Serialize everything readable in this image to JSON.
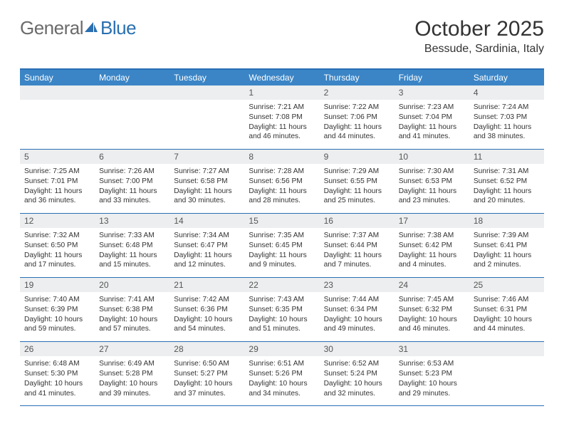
{
  "logo": {
    "general": "General",
    "blue": "Blue"
  },
  "title": "October 2025",
  "location": "Bessude, Sardinia, Italy",
  "colors": {
    "header_bg": "#3b85c6",
    "border": "#2a6fb5",
    "daynum_bg": "#eceeef",
    "text": "#333333",
    "logo_gray": "#6b6b6b",
    "logo_blue": "#2a6fb0"
  },
  "day_names": [
    "Sunday",
    "Monday",
    "Tuesday",
    "Wednesday",
    "Thursday",
    "Friday",
    "Saturday"
  ],
  "weeks": [
    {
      "nums": [
        "",
        "",
        "",
        "1",
        "2",
        "3",
        "4"
      ],
      "cells": [
        "",
        "",
        "",
        "Sunrise: 7:21 AM\nSunset: 7:08 PM\nDaylight: 11 hours and 46 minutes.",
        "Sunrise: 7:22 AM\nSunset: 7:06 PM\nDaylight: 11 hours and 44 minutes.",
        "Sunrise: 7:23 AM\nSunset: 7:04 PM\nDaylight: 11 hours and 41 minutes.",
        "Sunrise: 7:24 AM\nSunset: 7:03 PM\nDaylight: 11 hours and 38 minutes."
      ]
    },
    {
      "nums": [
        "5",
        "6",
        "7",
        "8",
        "9",
        "10",
        "11"
      ],
      "cells": [
        "Sunrise: 7:25 AM\nSunset: 7:01 PM\nDaylight: 11 hours and 36 minutes.",
        "Sunrise: 7:26 AM\nSunset: 7:00 PM\nDaylight: 11 hours and 33 minutes.",
        "Sunrise: 7:27 AM\nSunset: 6:58 PM\nDaylight: 11 hours and 30 minutes.",
        "Sunrise: 7:28 AM\nSunset: 6:56 PM\nDaylight: 11 hours and 28 minutes.",
        "Sunrise: 7:29 AM\nSunset: 6:55 PM\nDaylight: 11 hours and 25 minutes.",
        "Sunrise: 7:30 AM\nSunset: 6:53 PM\nDaylight: 11 hours and 23 minutes.",
        "Sunrise: 7:31 AM\nSunset: 6:52 PM\nDaylight: 11 hours and 20 minutes."
      ]
    },
    {
      "nums": [
        "12",
        "13",
        "14",
        "15",
        "16",
        "17",
        "18"
      ],
      "cells": [
        "Sunrise: 7:32 AM\nSunset: 6:50 PM\nDaylight: 11 hours and 17 minutes.",
        "Sunrise: 7:33 AM\nSunset: 6:48 PM\nDaylight: 11 hours and 15 minutes.",
        "Sunrise: 7:34 AM\nSunset: 6:47 PM\nDaylight: 11 hours and 12 minutes.",
        "Sunrise: 7:35 AM\nSunset: 6:45 PM\nDaylight: 11 hours and 9 minutes.",
        "Sunrise: 7:37 AM\nSunset: 6:44 PM\nDaylight: 11 hours and 7 minutes.",
        "Sunrise: 7:38 AM\nSunset: 6:42 PM\nDaylight: 11 hours and 4 minutes.",
        "Sunrise: 7:39 AM\nSunset: 6:41 PM\nDaylight: 11 hours and 2 minutes."
      ]
    },
    {
      "nums": [
        "19",
        "20",
        "21",
        "22",
        "23",
        "24",
        "25"
      ],
      "cells": [
        "Sunrise: 7:40 AM\nSunset: 6:39 PM\nDaylight: 10 hours and 59 minutes.",
        "Sunrise: 7:41 AM\nSunset: 6:38 PM\nDaylight: 10 hours and 57 minutes.",
        "Sunrise: 7:42 AM\nSunset: 6:36 PM\nDaylight: 10 hours and 54 minutes.",
        "Sunrise: 7:43 AM\nSunset: 6:35 PM\nDaylight: 10 hours and 51 minutes.",
        "Sunrise: 7:44 AM\nSunset: 6:34 PM\nDaylight: 10 hours and 49 minutes.",
        "Sunrise: 7:45 AM\nSunset: 6:32 PM\nDaylight: 10 hours and 46 minutes.",
        "Sunrise: 7:46 AM\nSunset: 6:31 PM\nDaylight: 10 hours and 44 minutes."
      ]
    },
    {
      "nums": [
        "26",
        "27",
        "28",
        "29",
        "30",
        "31",
        ""
      ],
      "cells": [
        "Sunrise: 6:48 AM\nSunset: 5:30 PM\nDaylight: 10 hours and 41 minutes.",
        "Sunrise: 6:49 AM\nSunset: 5:28 PM\nDaylight: 10 hours and 39 minutes.",
        "Sunrise: 6:50 AM\nSunset: 5:27 PM\nDaylight: 10 hours and 37 minutes.",
        "Sunrise: 6:51 AM\nSunset: 5:26 PM\nDaylight: 10 hours and 34 minutes.",
        "Sunrise: 6:52 AM\nSunset: 5:24 PM\nDaylight: 10 hours and 32 minutes.",
        "Sunrise: 6:53 AM\nSunset: 5:23 PM\nDaylight: 10 hours and 29 minutes.",
        ""
      ]
    }
  ]
}
